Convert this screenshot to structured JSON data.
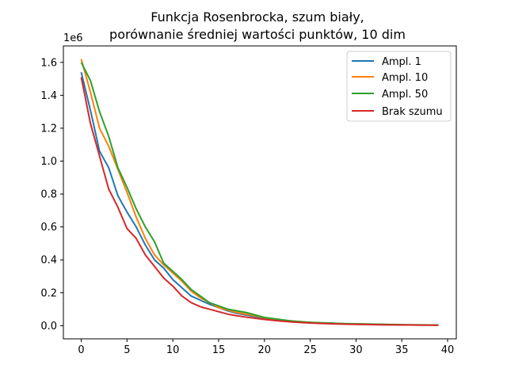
{
  "chart_data": {
    "type": "line",
    "title_lines": [
      "Funkcja Rosenbrocka, szum biały,",
      "porównanie średniej wartości punktów, 10 dim"
    ],
    "xlabel": "",
    "ylabel": "",
    "y_offset_label": "1e6",
    "xlim": [
      -1.95,
      40.95
    ],
    "ylim": [
      -0.08,
      1.7
    ],
    "x_ticks": [
      0,
      5,
      10,
      15,
      20,
      25,
      30,
      35,
      40
    ],
    "y_ticks": [
      0.0,
      0.2,
      0.4,
      0.6,
      0.8,
      1.0,
      1.2,
      1.4,
      1.6
    ],
    "x_tick_labels": [
      "0",
      "5",
      "10",
      "15",
      "20",
      "25",
      "30",
      "35",
      "40"
    ],
    "y_tick_labels": [
      "0.0",
      "0.2",
      "0.4",
      "0.6",
      "0.8",
      "1.0",
      "1.2",
      "1.4",
      "1.6"
    ],
    "grid": false,
    "legend_position": "top-right",
    "x": [
      0,
      1,
      2,
      3,
      4,
      5,
      6,
      7,
      8,
      9,
      10,
      11,
      12,
      13,
      14,
      15,
      16,
      17,
      18,
      19,
      20,
      21,
      22,
      23,
      24,
      25,
      26,
      27,
      28,
      29,
      30,
      31,
      32,
      33,
      34,
      35,
      36,
      37,
      38,
      39
    ],
    "series": [
      {
        "name": "Ampl. 1",
        "color": "#1f77b4",
        "values": [
          1.54,
          1.31,
          1.06,
          0.96,
          0.79,
          0.69,
          0.6,
          0.49,
          0.4,
          0.35,
          0.28,
          0.23,
          0.18,
          0.155,
          0.13,
          0.11,
          0.09,
          0.075,
          0.065,
          0.055,
          0.045,
          0.038,
          0.032,
          0.027,
          0.023,
          0.02,
          0.017,
          0.015,
          0.013,
          0.011,
          0.01,
          0.009,
          0.008,
          0.007,
          0.006,
          0.005,
          0.005,
          0.004,
          0.004,
          0.003
        ]
      },
      {
        "name": "Ampl. 10",
        "color": "#ff7f0e",
        "values": [
          1.62,
          1.42,
          1.2,
          1.09,
          0.95,
          0.81,
          0.66,
          0.53,
          0.43,
          0.37,
          0.32,
          0.27,
          0.21,
          0.17,
          0.14,
          0.11,
          0.095,
          0.08,
          0.07,
          0.06,
          0.048,
          0.04,
          0.034,
          0.028,
          0.024,
          0.02,
          0.017,
          0.015,
          0.013,
          0.011,
          0.01,
          0.009,
          0.008,
          0.007,
          0.006,
          0.005,
          0.005,
          0.004,
          0.004,
          0.003
        ]
      },
      {
        "name": "Ampl. 50",
        "color": "#2ca02c",
        "values": [
          1.6,
          1.49,
          1.3,
          1.15,
          0.96,
          0.84,
          0.71,
          0.6,
          0.51,
          0.38,
          0.33,
          0.28,
          0.22,
          0.18,
          0.14,
          0.12,
          0.1,
          0.09,
          0.08,
          0.065,
          0.05,
          0.043,
          0.035,
          0.028,
          0.024,
          0.02,
          0.018,
          0.016,
          0.014,
          0.012,
          0.011,
          0.01,
          0.009,
          0.008,
          0.007,
          0.006,
          0.005,
          0.005,
          0.004,
          0.004
        ]
      },
      {
        "name": "Brak szumu",
        "color": "#d62728",
        "values": [
          1.51,
          1.23,
          1.03,
          0.83,
          0.72,
          0.59,
          0.53,
          0.43,
          0.36,
          0.29,
          0.24,
          0.18,
          0.14,
          0.115,
          0.1,
          0.085,
          0.07,
          0.06,
          0.052,
          0.045,
          0.038,
          0.032,
          0.027,
          0.022,
          0.019,
          0.016,
          0.014,
          0.012,
          0.01,
          0.009,
          0.008,
          0.007,
          0.006,
          0.005,
          0.005,
          0.004,
          0.004,
          0.003,
          0.003,
          0.003
        ]
      }
    ]
  }
}
